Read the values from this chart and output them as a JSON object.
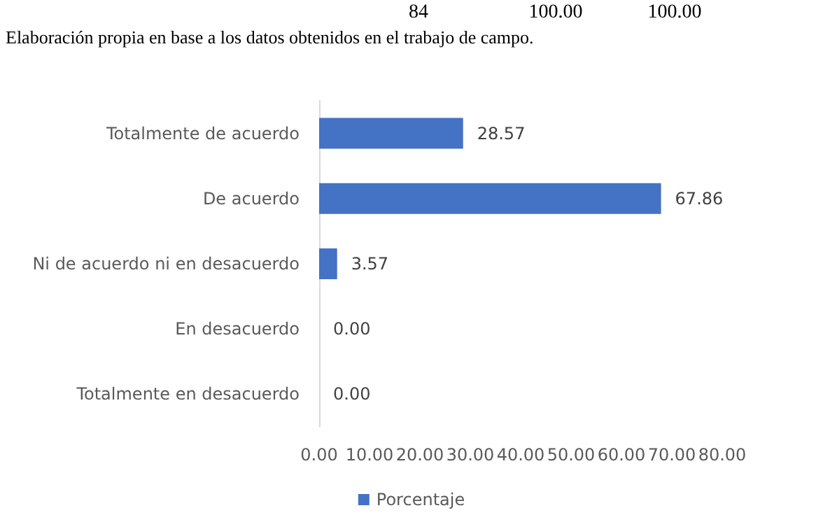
{
  "chart_data": {
    "type": "bar",
    "orientation": "horizontal",
    "categories": [
      "Totalmente de acuerdo",
      "De acuerdo",
      "Ni de acuerdo ni en desacuerdo",
      "En desacuerdo",
      "Totalmente en desacuerdo"
    ],
    "series": [
      {
        "name": "Porcentaje",
        "color": "#4472c4",
        "values": [
          28.57,
          67.86,
          3.57,
          0.0,
          0.0
        ],
        "value_labels": [
          "28.57",
          "67.86",
          "3.57",
          "0.00",
          "0.00"
        ]
      }
    ],
    "xlim": [
      0,
      80
    ],
    "xticks": [
      {
        "value": 0,
        "label": "0.00"
      },
      {
        "value": 10,
        "label": "10.00"
      },
      {
        "value": 20,
        "label": "20.00"
      },
      {
        "value": 30,
        "label": "30.00"
      },
      {
        "value": 40,
        "label": "40.00"
      },
      {
        "value": 50,
        "label": "50.00"
      },
      {
        "value": 60,
        "label": "60.00"
      },
      {
        "value": 70,
        "label": "70.00"
      },
      {
        "value": 80,
        "label": "80.00"
      }
    ],
    "grid": false,
    "legend": "bottom",
    "annotations": [
      "84",
      "100.00",
      "100.00",
      "Elaboración propia en base a los datos obtenidos en el trabajo de campo."
    ]
  }
}
